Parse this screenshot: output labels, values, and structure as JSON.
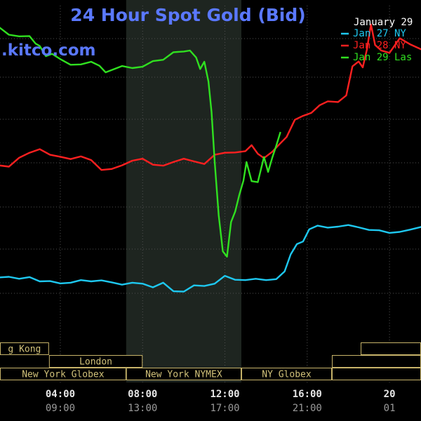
{
  "title": "24 Hour Spot Gold (Bid)",
  "brand": ".kitco.com",
  "colors": {
    "background": "#000000",
    "title": "#5a78ff",
    "grid": "#505050",
    "session_band": "#1e2520",
    "session_label_bg": "#000000",
    "session_label_border": "#c8b46a",
    "session_label_text": "#d2c27a",
    "tick_label": "#e6e6e6",
    "tick_label_secondary": "#9a9a9a",
    "legend_text": "#ffffff"
  },
  "chart_data": {
    "type": "line",
    "title": "24 Hour Spot Gold (Bid)",
    "xlabel": "",
    "ylabel": "",
    "x_unit": "hours (New York time)",
    "xlim": [
      1.0,
      21.6
    ],
    "ylim": [
      0,
      100
    ],
    "grid": true,
    "legend": {
      "placement": "top-right",
      "heading": "January 29",
      "entries": [
        "Jan 27 NY",
        "Jan 28 NY",
        "Jan 29 Las"
      ]
    },
    "x_ticks": [
      {
        "x": 4,
        "label": "04:00",
        "sub": "09:00"
      },
      {
        "x": 8,
        "label": "08:00",
        "sub": "13:00"
      },
      {
        "x": 12,
        "label": "12:00",
        "sub": "17:00"
      },
      {
        "x": 16,
        "label": "16:00",
        "sub": "21:00"
      },
      {
        "x": 20,
        "label": "20",
        "sub": "01"
      }
    ],
    "sessions": [
      {
        "label": "g Kong",
        "row": 1,
        "x0": 1.0,
        "x1": 3.45
      },
      {
        "label": "London",
        "row": 2,
        "x0": 3.45,
        "x1": 8.0
      },
      {
        "label": "New York Globex",
        "row": 3,
        "x0": 1.0,
        "x1": 7.2
      },
      {
        "label": "New York NYMEX",
        "row": 3,
        "x0": 7.2,
        "x1": 12.8
      },
      {
        "label": "NY Globex",
        "row": 3,
        "x0": 12.8,
        "x1": 17.2
      },
      {
        "label": "",
        "row": 3,
        "x0": 17.2,
        "x1": 21.6
      },
      {
        "label": "",
        "row": 1,
        "x0": 18.6,
        "x1": 21.6
      },
      {
        "label": "",
        "row": 2,
        "x0": 17.2,
        "x1": 21.6
      }
    ],
    "highlight": {
      "x0": 7.2,
      "x1": 12.8
    },
    "series": [
      {
        "name": "Jan 27 NY",
        "color": "#1ec8f0",
        "x": [
          1.0,
          1.5,
          2.0,
          2.5,
          3.0,
          3.5,
          4.0,
          4.5,
          5.0,
          5.5,
          6.0,
          6.5,
          7.0,
          7.5,
          8.0,
          8.5,
          9.0,
          9.5,
          10.0,
          10.5,
          11.0,
          11.5,
          12.0,
          12.5,
          13.0,
          13.5,
          14.0,
          14.5,
          14.9,
          15.2,
          15.5,
          15.8,
          16.1,
          16.5,
          17.0,
          17.5,
          18.0,
          18.5,
          19.0,
          19.5,
          20.0,
          20.5,
          21.0,
          21.6
        ],
        "values": [
          18.0,
          18.2,
          17.6,
          18.1,
          16.8,
          16.9,
          16.2,
          16.4,
          17.2,
          16.8,
          17.1,
          16.5,
          15.8,
          16.4,
          16.1,
          15.0,
          16.4,
          13.8,
          13.7,
          15.6,
          15.4,
          16.1,
          18.5,
          17.3,
          17.2,
          17.6,
          17.2,
          17.5,
          19.8,
          25.0,
          28.1,
          28.9,
          32.6,
          33.7,
          33.1,
          33.4,
          33.9,
          33.2,
          32.4,
          32.3,
          31.5,
          31.8,
          32.5,
          33.4
        ]
      },
      {
        "name": "Jan 28 NY",
        "color": "#ff2020",
        "x": [
          1.0,
          1.5,
          2.0,
          2.5,
          3.0,
          3.5,
          4.0,
          4.5,
          5.0,
          5.5,
          6.0,
          6.5,
          7.0,
          7.5,
          8.0,
          8.5,
          9.0,
          9.5,
          10.0,
          10.5,
          11.0,
          11.5,
          12.0,
          12.5,
          13.0,
          13.3,
          13.6,
          13.9,
          14.3,
          14.7,
          15.0,
          15.4,
          15.8,
          16.2,
          16.6,
          17.0,
          17.5,
          17.9,
          18.2,
          18.5,
          18.7,
          18.9,
          19.1,
          19.3,
          19.6,
          20.0,
          20.5,
          21.0,
          21.6
        ],
        "values": [
          52.0,
          51.6,
          54.3,
          55.8,
          56.9,
          55.2,
          54.6,
          53.9,
          54.7,
          53.6,
          50.6,
          50.9,
          52.0,
          53.4,
          54.0,
          52.2,
          51.9,
          53.0,
          54.0,
          53.2,
          52.4,
          55.2,
          55.8,
          55.9,
          56.3,
          58.1,
          55.5,
          54.2,
          56.1,
          58.7,
          60.6,
          65.8,
          67.0,
          67.9,
          70.2,
          71.4,
          71.2,
          73.2,
          82.0,
          83.5,
          81.7,
          87.0,
          94.7,
          88.5,
          86.8,
          86.1,
          90.5,
          88.7,
          87.0
        ]
      },
      {
        "name": "Jan 29 Las",
        "color": "#30e020",
        "x": [
          1.0,
          1.5,
          2.0,
          2.5,
          2.8,
          3.0,
          3.3,
          3.6,
          4.0,
          4.5,
          5.0,
          5.5,
          5.9,
          6.2,
          6.5,
          7.0,
          7.5,
          8.0,
          8.5,
          9.0,
          9.5,
          10.0,
          10.3,
          10.6,
          10.8,
          11.0,
          11.2,
          11.35,
          11.5,
          11.7,
          11.9,
          12.1,
          12.3,
          12.5,
          12.7,
          12.9,
          13.05,
          13.3,
          13.6,
          13.9,
          14.1,
          14.3,
          14.5,
          14.7
        ],
        "values": [
          94.0,
          91.6,
          91.1,
          91.2,
          88.9,
          88.2,
          85.1,
          85.8,
          84.2,
          82.5,
          82.6,
          83.4,
          82.2,
          80.2,
          80.9,
          82.1,
          81.5,
          81.9,
          83.6,
          84.0,
          86.3,
          86.5,
          86.8,
          84.7,
          81.2,
          83.4,
          77.4,
          68.1,
          53.3,
          36.8,
          25.9,
          24.3,
          34.8,
          38.0,
          43.0,
          47.3,
          53.0,
          47.2,
          46.9,
          54.5,
          50.0,
          54.3,
          58.0,
          62.1
        ]
      }
    ]
  }
}
